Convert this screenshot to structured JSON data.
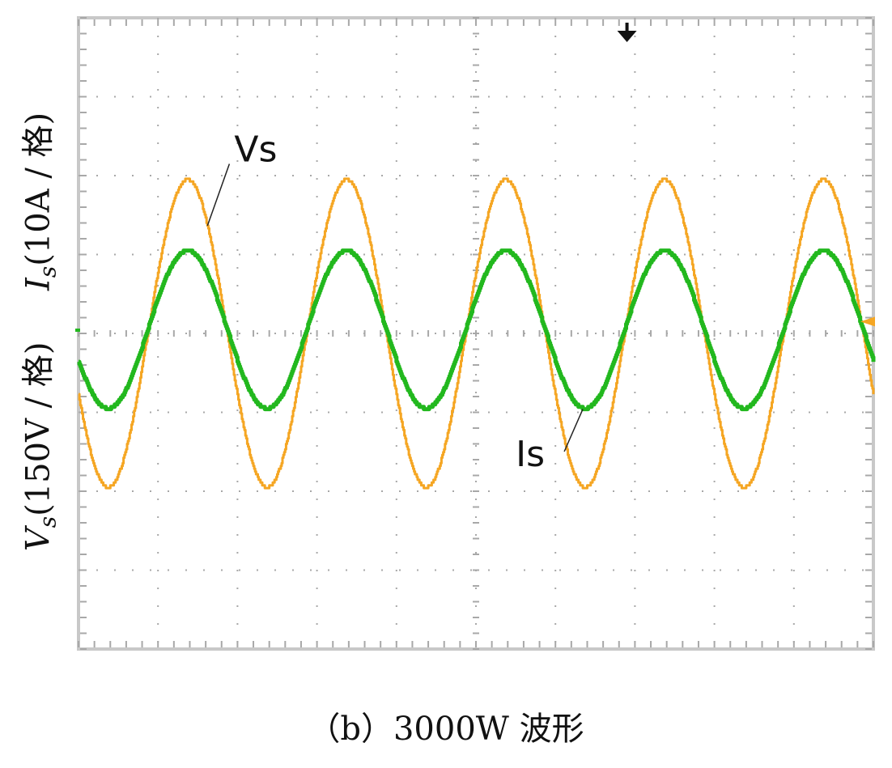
{
  "chart_data": {
    "type": "line",
    "title": "",
    "caption": "（b）3000W 波形",
    "ylabel": {
      "v_symbol": "V",
      "v_sub": "s",
      "v_scale": "(150V / 格)",
      "i_symbol": "I",
      "i_sub": "s",
      "i_scale": "(10A / 格)"
    },
    "grid": {
      "x_divisions": 10,
      "y_divisions": 8,
      "style": "dotted"
    },
    "x_range": [
      0,
      10
    ],
    "y_range": [
      -4,
      4
    ],
    "series": [
      {
        "name": "Vs",
        "color": "#f5a623",
        "amplitude_div": 1.95,
        "offset_div": 0.0,
        "period_div": 2.0,
        "first_peak_x_div": 1.37,
        "x_start_div": 0.0,
        "x_end_div": 10.0
      },
      {
        "name": "Is",
        "color": "#22b81e",
        "amplitude_div": 1.0,
        "offset_div": 0.05,
        "period_div": 2.0,
        "first_peak_x_div": 1.37,
        "x_start_div": 0.0,
        "x_end_div": 10.0
      }
    ],
    "annotations": [
      {
        "text": "Vs",
        "series": "Vs"
      },
      {
        "text": "Is",
        "series": "Is"
      }
    ],
    "markers": {
      "trigger_x_div": 6.9,
      "ground_level_div": 0.15
    },
    "frame_color": "#c8c8c8",
    "grid_color": "#a8a8a8"
  }
}
